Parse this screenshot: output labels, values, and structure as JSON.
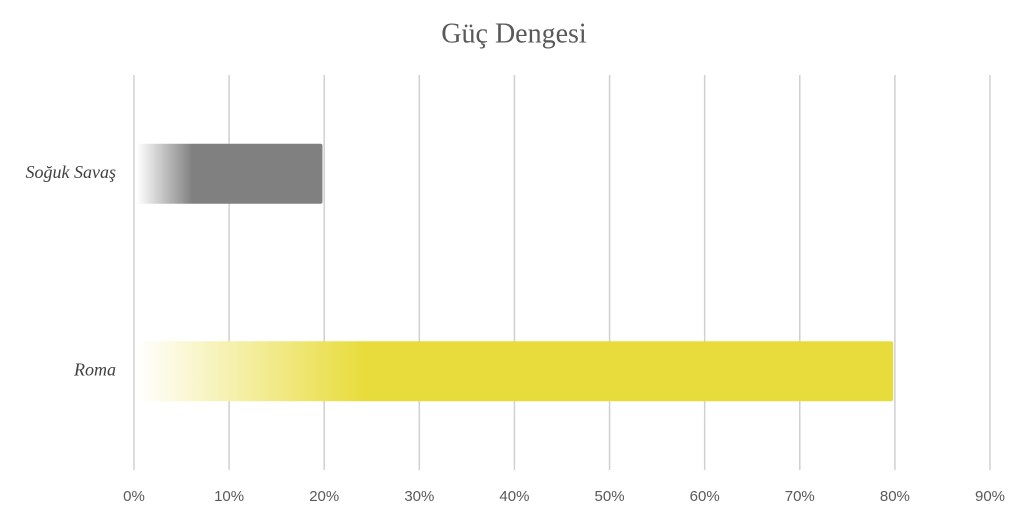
{
  "chart_data": {
    "type": "bar",
    "orientation": "horizontal",
    "title": "Güç Dengesi",
    "categories": [
      "Soğuk Savaş",
      "Roma"
    ],
    "values": [
      19.5,
      79.5
    ],
    "colors": [
      "#808080",
      "#e8dc3c"
    ],
    "xlim": [
      0,
      90
    ],
    "xticks": [
      {
        "value": 0,
        "label": "0%"
      },
      {
        "value": 10,
        "label": "10%"
      },
      {
        "value": 20,
        "label": "20%"
      },
      {
        "value": 30,
        "label": "30%"
      },
      {
        "value": 40,
        "label": "40%"
      },
      {
        "value": 50,
        "label": "50%"
      },
      {
        "value": 60,
        "label": "60%"
      },
      {
        "value": 70,
        "label": "70%"
      },
      {
        "value": 80,
        "label": "80%"
      },
      {
        "value": 90,
        "label": "90%"
      }
    ],
    "grid": true
  }
}
